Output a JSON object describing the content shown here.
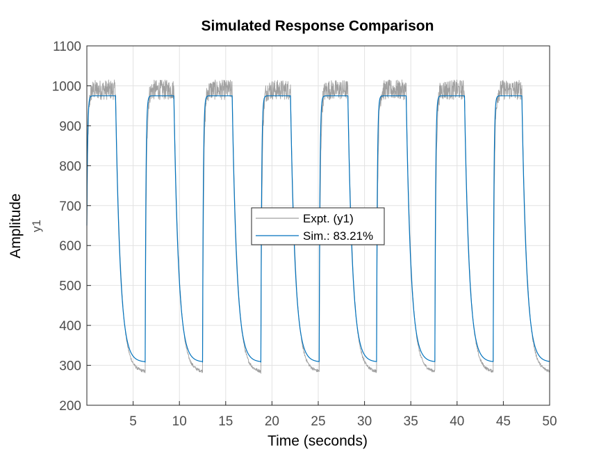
{
  "chart_data": {
    "type": "line",
    "title": "Simulated Response Comparison",
    "xlabel": "Time (seconds)",
    "ylabel": "Amplitude",
    "ylabel_channel": "y1",
    "xlim": [
      0,
      50
    ],
    "ylim": [
      200,
      1100
    ],
    "xticks": [
      5,
      10,
      15,
      20,
      25,
      30,
      35,
      40,
      45,
      50
    ],
    "yticks": [
      200,
      300,
      400,
      500,
      600,
      700,
      800,
      900,
      1000,
      1100
    ],
    "grid": true,
    "legend_position": "center",
    "series": [
      {
        "name": "Expt. (y1)",
        "color": "#a0a0a0",
        "description_style": "noisy measured square wave",
        "high_level": 990,
        "low_level": 283,
        "noise_amplitude_high": 25,
        "noise_amplitude_low": 4,
        "rise_edges": [
          0,
          6.3,
          12.5,
          18.8,
          25.1,
          31.3,
          37.6,
          43.9
        ],
        "fall_edges": [
          3.1,
          9.4,
          15.7,
          22.0,
          28.2,
          34.5,
          40.8,
          47.0
        ]
      },
      {
        "name": "Sim.: 83.21%",
        "color": "#0072bd",
        "high_level": 975,
        "low_level": 308,
        "rise_edges": [
          0,
          6.3,
          12.5,
          18.8,
          25.1,
          31.3,
          37.6,
          43.9
        ],
        "fall_edges": [
          3.1,
          9.4,
          15.7,
          22.0,
          28.2,
          34.5,
          40.8,
          47.0
        ]
      }
    ]
  }
}
